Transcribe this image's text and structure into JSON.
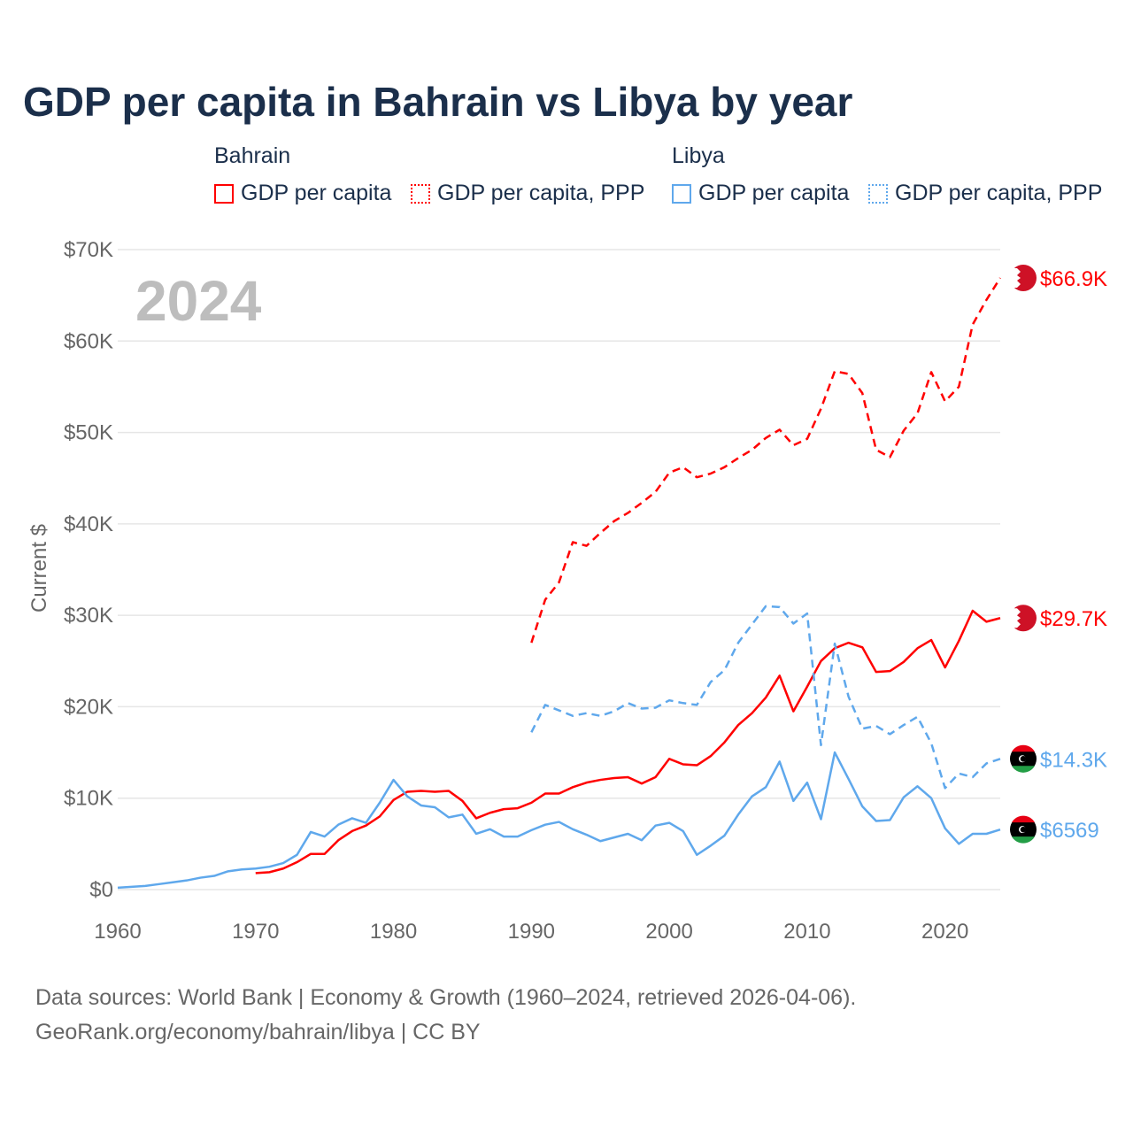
{
  "title": "GDP per capita in Bahrain vs Libya by year",
  "legend": {
    "groups": [
      {
        "name": "Bahrain",
        "items": [
          "GDP per capita",
          "GDP per capita, PPP"
        ]
      },
      {
        "name": "Libya",
        "items": [
          "GDP per capita",
          "GDP per capita, PPP"
        ]
      }
    ]
  },
  "colors": {
    "bahrain": "#ff0000",
    "libya": "#5fa8ec"
  },
  "year_label": "2024",
  "source": {
    "line1": "Data sources: World Bank | Economy & Growth (1960–2024, retrieved 2026-04-06).",
    "line2": "GeoRank.org/economy/bahrain/libya | CC BY"
  },
  "chart_data": {
    "type": "line",
    "title": "GDP per capita in Bahrain vs Libya by year",
    "ylabel": "Current $",
    "xlabel": "",
    "xlim": [
      1960,
      2024
    ],
    "ylim": [
      0,
      70000
    ],
    "x_ticks": [
      1960,
      1970,
      1980,
      1990,
      2000,
      2010,
      2020
    ],
    "x_tick_labels": [
      "1960",
      "1970",
      "1980",
      "1990",
      "2000",
      "2010",
      "2020"
    ],
    "y_ticks": [
      0,
      10000,
      20000,
      30000,
      40000,
      50000,
      60000,
      70000
    ],
    "y_tick_labels": [
      "$0",
      "$10K",
      "$20K",
      "$30K",
      "$40K",
      "$50K",
      "$60K",
      "$70K"
    ],
    "grid": true,
    "legend_position": "top",
    "series": [
      {
        "name": "Bahrain GDP per capita",
        "country": "bahrain",
        "style": "solid",
        "start": 1970,
        "end_label": "$29.7K",
        "values": [
          1.8,
          1.9,
          2.3,
          3.0,
          3.9,
          3.9,
          5.4,
          6.4,
          7.0,
          8.0,
          9.8,
          10.7,
          10.8,
          10.7,
          10.8,
          9.7,
          7.8,
          8.4,
          8.8,
          8.9,
          9.5,
          10.5,
          10.5,
          11.2,
          11.7,
          12.0,
          12.2,
          12.3,
          11.6,
          12.3,
          14.3,
          13.7,
          13.6,
          14.6,
          16.1,
          18.0,
          19.3,
          21.0,
          23.4,
          19.5,
          22.2,
          25.0,
          26.4,
          27.0,
          26.5,
          23.8,
          23.9,
          24.9,
          26.4,
          27.3,
          24.3,
          27.2,
          30.5,
          29.3,
          29.7
        ]
      },
      {
        "name": "Bahrain GDP per capita, PPP",
        "country": "bahrain",
        "style": "dashed",
        "start": 1990,
        "end_label": "$66.9K",
        "values": [
          27.0,
          31.7,
          33.6,
          38.0,
          37.6,
          39.0,
          40.3,
          41.2,
          42.3,
          43.5,
          45.6,
          46.2,
          45.1,
          45.5,
          46.2,
          47.2,
          48.1,
          49.4,
          50.3,
          48.6,
          49.3,
          52.6,
          56.7,
          56.4,
          54.3,
          48.1,
          47.3,
          50.2,
          52.1,
          56.6,
          53.4,
          55.0,
          61.8,
          64.5,
          66.9
        ]
      },
      {
        "name": "Libya GDP per capita",
        "country": "libya",
        "style": "solid",
        "start": 1960,
        "end_label": "$6569",
        "values": [
          0.2,
          0.3,
          0.4,
          0.6,
          0.8,
          1.0,
          1.3,
          1.5,
          2.0,
          2.2,
          2.3,
          2.5,
          2.9,
          3.8,
          6.3,
          5.8,
          7.1,
          7.8,
          7.3,
          9.5,
          12.0,
          10.2,
          9.2,
          9.0,
          7.9,
          8.2,
          6.1,
          6.6,
          5.8,
          5.8,
          6.5,
          7.1,
          7.4,
          6.6,
          6.0,
          5.3,
          5.7,
          6.1,
          5.4,
          7.0,
          7.3,
          6.4,
          3.8,
          4.8,
          5.9,
          8.2,
          10.2,
          11.2,
          14.0,
          9.7,
          11.7,
          7.7,
          15.0,
          12.1,
          9.1,
          7.5,
          7.6,
          10.1,
          11.3,
          10.0,
          6.7,
          5.0,
          6.1,
          6.1,
          6.569
        ]
      },
      {
        "name": "Libya GDP per capita, PPP",
        "country": "libya",
        "style": "dashed",
        "start": 1990,
        "end_label": "$14.3K",
        "values": [
          17.2,
          20.2,
          19.6,
          19.0,
          19.3,
          19.0,
          19.5,
          20.4,
          19.8,
          19.9,
          20.7,
          20.4,
          20.2,
          22.7,
          24.0,
          27.0,
          29.0,
          31.0,
          30.9,
          29.1,
          30.2,
          15.8,
          26.9,
          21.1,
          17.6,
          17.9,
          17.0,
          18.0,
          18.9,
          16.0,
          11.1,
          12.7,
          12.3,
          13.8,
          14.3
        ]
      }
    ],
    "value_unit": "thousands USD"
  }
}
